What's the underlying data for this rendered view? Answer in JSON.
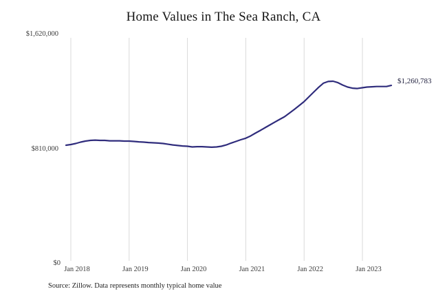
{
  "title": "Home Values in The Sea Ranch, CA",
  "latest_value_label": "$1,260,783",
  "source_note": "Source: Zillow. Data represents monthly typical home value",
  "y_axis": {
    "labels": [
      "$1,620,000",
      "$810,000",
      "$0"
    ]
  },
  "x_axis": {
    "labels": [
      "Jan 2018",
      "Jan 2019",
      "Jan 2020",
      "Jan 2021",
      "Jan 2022",
      "Jan 2023"
    ]
  },
  "colors": {
    "line": "#2f2c7c",
    "grid": "#d9d9d9",
    "title_text": "#161616",
    "axis_text": "#3a3a3a"
  },
  "chart_data": {
    "type": "line",
    "title": "Home Values in The Sea Ranch, CA",
    "series_name": "Typical home value",
    "x": [
      "Dec 2017",
      "Jan 2018",
      "Feb 2018",
      "Mar 2018",
      "Apr 2018",
      "May 2018",
      "Jun 2018",
      "Jul 2018",
      "Aug 2018",
      "Sep 2018",
      "Oct 2018",
      "Nov 2018",
      "Dec 2018",
      "Jan 2019",
      "Feb 2019",
      "Mar 2019",
      "Apr 2019",
      "May 2019",
      "Jun 2019",
      "Jul 2019",
      "Aug 2019",
      "Sep 2019",
      "Oct 2019",
      "Nov 2019",
      "Dec 2019",
      "Jan 2020",
      "Feb 2020",
      "Mar 2020",
      "Apr 2020",
      "May 2020",
      "Jun 2020",
      "Jul 2020",
      "Aug 2020",
      "Sep 2020",
      "Oct 2020",
      "Nov 2020",
      "Dec 2020",
      "Jan 2021",
      "Feb 2021",
      "Mar 2021",
      "Apr 2021",
      "May 2021",
      "Jun 2021",
      "Jul 2021",
      "Aug 2021",
      "Sep 2021",
      "Oct 2021",
      "Nov 2021",
      "Dec 2021",
      "Jan 2022",
      "Feb 2022",
      "Mar 2022",
      "Apr 2022",
      "May 2022",
      "Jun 2022",
      "Jul 2022",
      "Aug 2022",
      "Sep 2022",
      "Oct 2022",
      "Nov 2022",
      "Dec 2022",
      "Jan 2023",
      "Feb 2023",
      "Mar 2023",
      "Apr 2023",
      "May 2023",
      "Jun 2023",
      "Jul 2023"
    ],
    "values": [
      839000,
      844000,
      851000,
      861000,
      868000,
      873000,
      875000,
      873000,
      873000,
      870000,
      870000,
      870000,
      868000,
      868000,
      866000,
      863000,
      861000,
      858000,
      856000,
      854000,
      851000,
      846000,
      841000,
      837000,
      834000,
      832000,
      827000,
      829000,
      829000,
      827000,
      825000,
      827000,
      832000,
      841000,
      854000,
      866000,
      878000,
      888000,
      904000,
      924000,
      943000,
      963000,
      982000,
      1002000,
      1021000,
      1040000,
      1065000,
      1091000,
      1118000,
      1145000,
      1179000,
      1213000,
      1246000,
      1276000,
      1288000,
      1290000,
      1280000,
      1263000,
      1249000,
      1241000,
      1239000,
      1244000,
      1249000,
      1251000,
      1253000,
      1253000,
      1253000,
      1260783
    ],
    "last_value": 1260783,
    "last_value_label": "$1,260,783",
    "ylim": [
      0,
      1620000
    ],
    "yticks": [
      0,
      810000,
      1620000
    ],
    "ytick_labels": [
      "$0",
      "$810,000",
      "$1,620,000"
    ],
    "xticks": [
      "Jan 2018",
      "Jan 2019",
      "Jan 2020",
      "Jan 2021",
      "Jan 2022",
      "Jan 2023"
    ],
    "grid": "vertical-only",
    "legend": "none",
    "source": "Source: Zillow. Data represents monthly typical home value"
  }
}
